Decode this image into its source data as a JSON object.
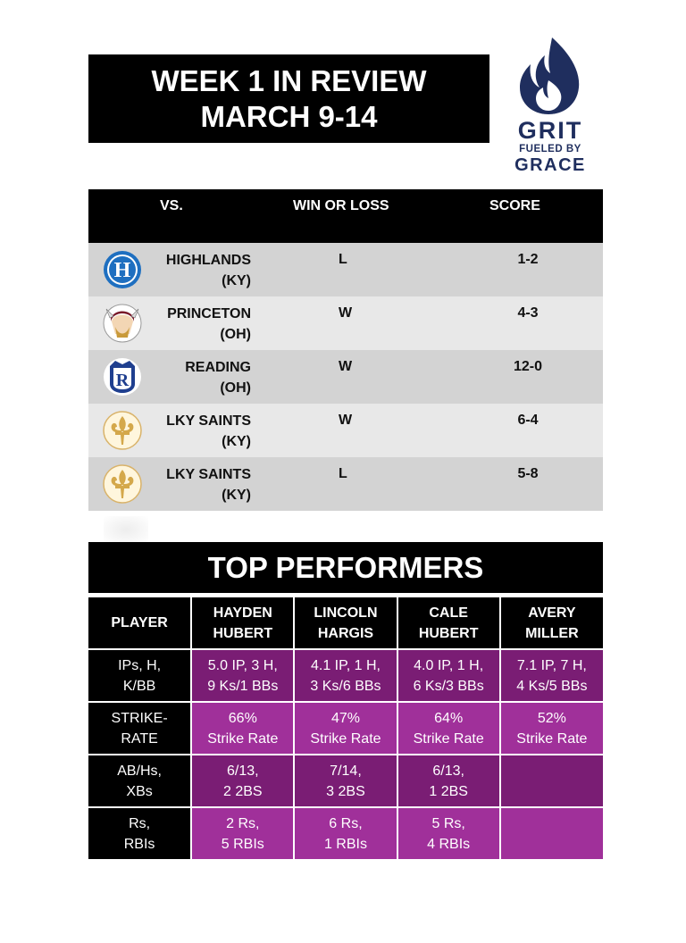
{
  "header": {
    "title_line1": "WEEK 1 IN REVIEW",
    "title_line2": "MARCH 9-14"
  },
  "logo": {
    "line1": "GRIT",
    "line2": "FUELED BY",
    "line3": "GRACE",
    "icon": "flame-icon",
    "color": "#1f2e5e"
  },
  "games": {
    "columns": [
      "VS.",
      "WIN OR LOSS",
      "SCORE"
    ],
    "rows": [
      {
        "team": "HIGHLANDS",
        "state": "(KY)",
        "result": "L",
        "score": "1-2",
        "logo": "highlands-h-icon"
      },
      {
        "team": "PRINCETON",
        "state": "(OH)",
        "result": "W",
        "score": "4-3",
        "logo": "viking-icon"
      },
      {
        "team": "READING",
        "state": "(OH)",
        "result": "W",
        "score": "12-0",
        "logo": "reading-r-icon"
      },
      {
        "team": "LKY SAINTS",
        "state": "(KY)",
        "result": "W",
        "score": "6-4",
        "logo": "fleur-de-lis-icon"
      },
      {
        "team": "LKY SAINTS",
        "state": "(KY)",
        "result": "L",
        "score": "5-8",
        "logo": "fleur-de-lis-icon"
      }
    ]
  },
  "performers": {
    "title": "TOP PERFORMERS",
    "header_label": "PLAYER",
    "players": [
      {
        "first": "HAYDEN",
        "last": "HUBERT"
      },
      {
        "first": "LINCOLN",
        "last": "HARGIS"
      },
      {
        "first": "CALE",
        "last": "HUBERT"
      },
      {
        "first": "AVERY",
        "last": "MILLER"
      }
    ],
    "rows": [
      {
        "label1": "IPs, H,",
        "label2": "K/BB",
        "cells": [
          [
            "5.0 IP, 3 H,",
            "9 Ks/1 BBs"
          ],
          [
            "4.1 IP, 1 H,",
            "3 Ks/6 BBs"
          ],
          [
            "4.0 IP, 1 H,",
            "6 Ks/3 BBs"
          ],
          [
            "7.1 IP, 7 H,",
            "4 Ks/5 BBs"
          ]
        ]
      },
      {
        "label1": "STRIKE-",
        "label2": "RATE",
        "cells": [
          [
            "66%",
            "Strike Rate"
          ],
          [
            "47%",
            "Strike Rate"
          ],
          [
            "64%",
            "Strike Rate"
          ],
          [
            "52%",
            "Strike Rate"
          ]
        ]
      },
      {
        "label1": "AB/Hs,",
        "label2": "XBs",
        "cells": [
          [
            "6/13,",
            "2 2BS"
          ],
          [
            "7/14,",
            "3 2BS"
          ],
          [
            "6/13,",
            "1 2BS"
          ],
          [
            "",
            ""
          ]
        ]
      },
      {
        "label1": "Rs,",
        "label2": "RBIs",
        "cells": [
          [
            "2 Rs,",
            "5 RBIs"
          ],
          [
            "6 Rs,",
            "1 RBIs"
          ],
          [
            "5 Rs,",
            "4 RBIs"
          ],
          [
            "",
            ""
          ]
        ]
      }
    ]
  },
  "colors": {
    "purple_light": "#a0309a",
    "purple_dark": "#7a1d74",
    "row_dark": "#d3d3d3",
    "row_light": "#e8e8e8"
  }
}
